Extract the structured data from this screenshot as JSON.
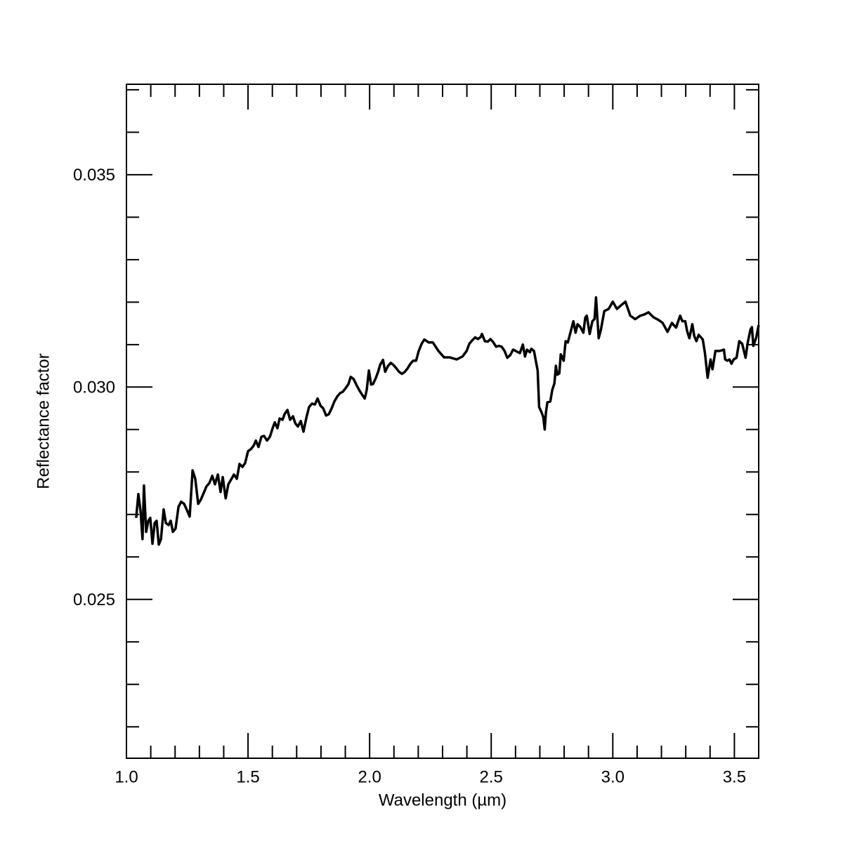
{
  "chart_data": {
    "type": "line",
    "x_label": "Wavelength (µm)",
    "y_label": "Reflectance factor",
    "color": "#000000",
    "xlim": [
      1.0,
      3.6
    ],
    "ylim": [
      0.02126,
      0.03713
    ],
    "xticks": [
      {
        "value": 1,
        "label": "1.0"
      },
      1.5,
      {
        "value": 2,
        "label": "2.0"
      },
      2.5,
      {
        "value": 3,
        "label": "3.0"
      },
      3.5
    ],
    "xminorticks": [
      1.1,
      1.2,
      1.3,
      1.4,
      1.6,
      1.7,
      1.8,
      1.9,
      2.1,
      2.2,
      2.3,
      2.4,
      2.6,
      2.7,
      2.8,
      2.9,
      3.1,
      3.2,
      3.3,
      3.4
    ],
    "yticks": [
      0.025,
      {
        "value": 0.03,
        "label": "0.030"
      },
      0.035
    ],
    "yminorticks": [
      0.022,
      0.023,
      0.024,
      0.026,
      0.027,
      0.028,
      0.029,
      0.031,
      0.032,
      0.033,
      0.034,
      0.036,
      0.037
    ],
    "x": [
      1.04,
      1.049,
      1.058,
      1.066,
      1.072,
      1.081,
      1.09,
      1.098,
      1.107,
      1.116,
      1.124,
      1.133,
      1.142,
      1.153,
      1.162,
      1.173,
      1.182,
      1.191,
      1.202,
      1.214,
      1.225,
      1.237,
      1.249,
      1.26,
      1.272,
      1.283,
      1.295,
      1.306,
      1.318,
      1.329,
      1.341,
      1.353,
      1.364,
      1.376,
      1.387,
      1.396,
      1.408,
      1.419,
      1.431,
      1.442,
      1.454,
      1.465,
      1.477,
      1.488,
      1.5,
      1.512,
      1.523,
      1.532,
      1.543,
      1.555,
      1.566,
      1.578,
      1.59,
      1.601,
      1.61,
      1.621,
      1.63,
      1.642,
      1.65,
      1.662,
      1.673,
      1.685,
      1.694,
      1.705,
      1.717,
      1.728,
      1.74,
      1.751,
      1.763,
      1.775,
      1.786,
      1.798,
      1.809,
      1.821,
      1.832,
      1.844,
      1.855,
      1.867,
      1.879,
      1.89,
      1.902,
      1.913,
      1.922,
      1.934,
      1.945,
      1.957,
      1.968,
      1.98,
      1.988,
      1.997,
      2.006,
      2.014,
      2.026,
      2.035,
      2.043,
      2.055,
      2.064,
      2.075,
      2.087,
      2.098,
      2.11,
      2.121,
      2.133,
      2.145,
      2.156,
      2.168,
      2.179,
      2.191,
      2.202,
      2.214,
      2.225,
      2.243,
      2.26,
      2.283,
      2.306,
      2.329,
      2.358,
      2.382,
      2.399,
      2.41,
      2.422,
      2.434,
      2.445,
      2.457,
      2.462,
      2.474,
      2.486,
      2.497,
      2.509,
      2.52,
      2.532,
      2.543,
      2.555,
      2.566,
      2.578,
      2.59,
      2.601,
      2.618,
      2.63,
      2.639,
      2.647,
      2.659,
      2.665,
      2.676,
      2.685,
      2.691,
      2.697,
      2.705,
      2.714,
      2.72,
      2.725,
      2.731,
      2.743,
      2.751,
      2.76,
      2.766,
      2.772,
      2.78,
      2.786,
      2.798,
      2.806,
      2.815,
      2.827,
      2.838,
      2.847,
      2.855,
      2.867,
      2.879,
      2.887,
      2.893,
      2.905,
      2.916,
      2.925,
      2.931,
      2.942,
      2.951,
      2.965,
      2.983,
      3.0,
      3.017,
      3.035,
      3.052,
      3.072,
      3.092,
      3.113,
      3.13,
      3.147,
      3.168,
      3.188,
      3.205,
      3.225,
      3.243,
      3.26,
      3.277,
      3.286,
      3.298,
      3.306,
      3.315,
      3.327,
      3.335,
      3.344,
      3.353,
      3.361,
      3.37,
      3.379,
      3.39,
      3.402,
      3.41,
      3.422,
      3.439,
      3.457,
      3.462,
      3.471,
      3.48,
      3.488,
      3.497,
      3.509,
      3.52,
      3.532,
      3.538,
      3.546,
      3.555,
      3.566,
      3.572,
      3.578,
      3.59,
      3.6
    ],
    "values": [
      0.02692,
      0.02748,
      0.02708,
      0.02642,
      0.02768,
      0.02659,
      0.02685,
      0.02692,
      0.02631,
      0.0268,
      0.02685,
      0.02629,
      0.02642,
      0.02712,
      0.0268,
      0.02675,
      0.02685,
      0.02659,
      0.02667,
      0.02718,
      0.0273,
      0.02725,
      0.0271,
      0.02695,
      0.02804,
      0.02784,
      0.02725,
      0.02735,
      0.02751,
      0.02766,
      0.02774,
      0.02791,
      0.02771,
      0.02794,
      0.02753,
      0.02788,
      0.02738,
      0.02771,
      0.02783,
      0.02794,
      0.02784,
      0.02819,
      0.02812,
      0.02821,
      0.02849,
      0.02854,
      0.02862,
      0.02874,
      0.02859,
      0.02883,
      0.02885,
      0.02874,
      0.02883,
      0.02903,
      0.02917,
      0.02903,
      0.02926,
      0.02923,
      0.02936,
      0.02946,
      0.02923,
      0.02931,
      0.02915,
      0.02907,
      0.0292,
      0.02895,
      0.02928,
      0.02953,
      0.02961,
      0.02959,
      0.02973,
      0.02956,
      0.0295,
      0.02933,
      0.02936,
      0.0295,
      0.02966,
      0.02978,
      0.02986,
      0.02989,
      0.02998,
      0.03007,
      0.03024,
      0.03019,
      0.03006,
      0.02993,
      0.02983,
      0.02973,
      0.02993,
      0.03039,
      0.03006,
      0.03007,
      0.03022,
      0.03036,
      0.03052,
      0.03064,
      0.03036,
      0.03049,
      0.03057,
      0.03052,
      0.03044,
      0.03036,
      0.03031,
      0.03036,
      0.03044,
      0.03055,
      0.03062,
      0.03062,
      0.03085,
      0.03102,
      0.03112,
      0.03105,
      0.03105,
      0.03085,
      0.0307,
      0.0307,
      0.03065,
      0.03072,
      0.03085,
      0.03102,
      0.0311,
      0.03117,
      0.03113,
      0.03118,
      0.03125,
      0.03108,
      0.03107,
      0.03113,
      0.03105,
      0.03095,
      0.03097,
      0.03095,
      0.03085,
      0.03069,
      0.03075,
      0.03088,
      0.03085,
      0.0308,
      0.031,
      0.03072,
      0.03088,
      0.03082,
      0.0309,
      0.03085,
      0.03057,
      0.03039,
      0.02953,
      0.02943,
      0.0293,
      0.029,
      0.0294,
      0.02964,
      0.02966,
      0.02993,
      0.03009,
      0.0305,
      0.03029,
      0.03032,
      0.03077,
      0.03062,
      0.03108,
      0.03105,
      0.03131,
      0.03155,
      0.03128,
      0.03148,
      0.03141,
      0.03128,
      0.03164,
      0.03168,
      0.03125,
      0.03155,
      0.0316,
      0.03211,
      0.03115,
      0.03135,
      0.03179,
      0.03184,
      0.03201,
      0.03184,
      0.03193,
      0.03201,
      0.03168,
      0.0316,
      0.03168,
      0.03171,
      0.03176,
      0.03164,
      0.03158,
      0.03151,
      0.0313,
      0.03151,
      0.0314,
      0.03168,
      0.03155,
      0.03155,
      0.03131,
      0.03115,
      0.03148,
      0.0312,
      0.03108,
      0.03123,
      0.03118,
      0.03112,
      0.0308,
      0.03022,
      0.03065,
      0.03042,
      0.03085,
      0.03085,
      0.03088,
      0.03065,
      0.03062,
      0.03065,
      0.03055,
      0.03065,
      0.03069,
      0.03108,
      0.03102,
      0.03088,
      0.03069,
      0.03105,
      0.03135,
      0.03141,
      0.03097,
      0.03117,
      0.03146
    ]
  }
}
